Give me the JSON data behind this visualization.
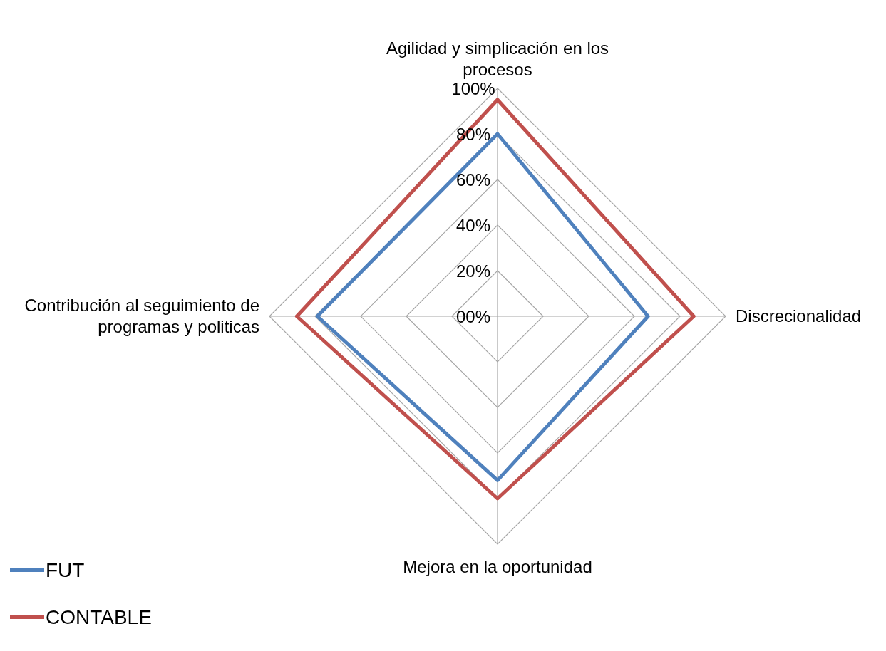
{
  "chart_data": {
    "type": "radar",
    "categories": [
      "Agilidad y simplicación en los procesos",
      "Discrecionalidad",
      "Mejora en la oportunidad",
      "Contribución al seguimiento de programas y politicas"
    ],
    "series": [
      {
        "name": "FUT",
        "color": "#4f81bd",
        "values": [
          80,
          66,
          72,
          79
        ]
      },
      {
        "name": "CONTABLE",
        "color": "#c0504d",
        "values": [
          95,
          86,
          80,
          88
        ]
      }
    ],
    "ylim": [
      0,
      100
    ],
    "yticks": [
      {
        "value": 0,
        "label": "00%"
      },
      {
        "value": 20,
        "label": "20%"
      },
      {
        "value": 40,
        "label": "40%"
      },
      {
        "value": 60,
        "label": "60%"
      },
      {
        "value": 80,
        "label": "80%"
      },
      {
        "value": 100,
        "label": "100%"
      }
    ],
    "grid": true,
    "legend": "bottom left",
    "marker": "none",
    "line_style": "solid"
  }
}
